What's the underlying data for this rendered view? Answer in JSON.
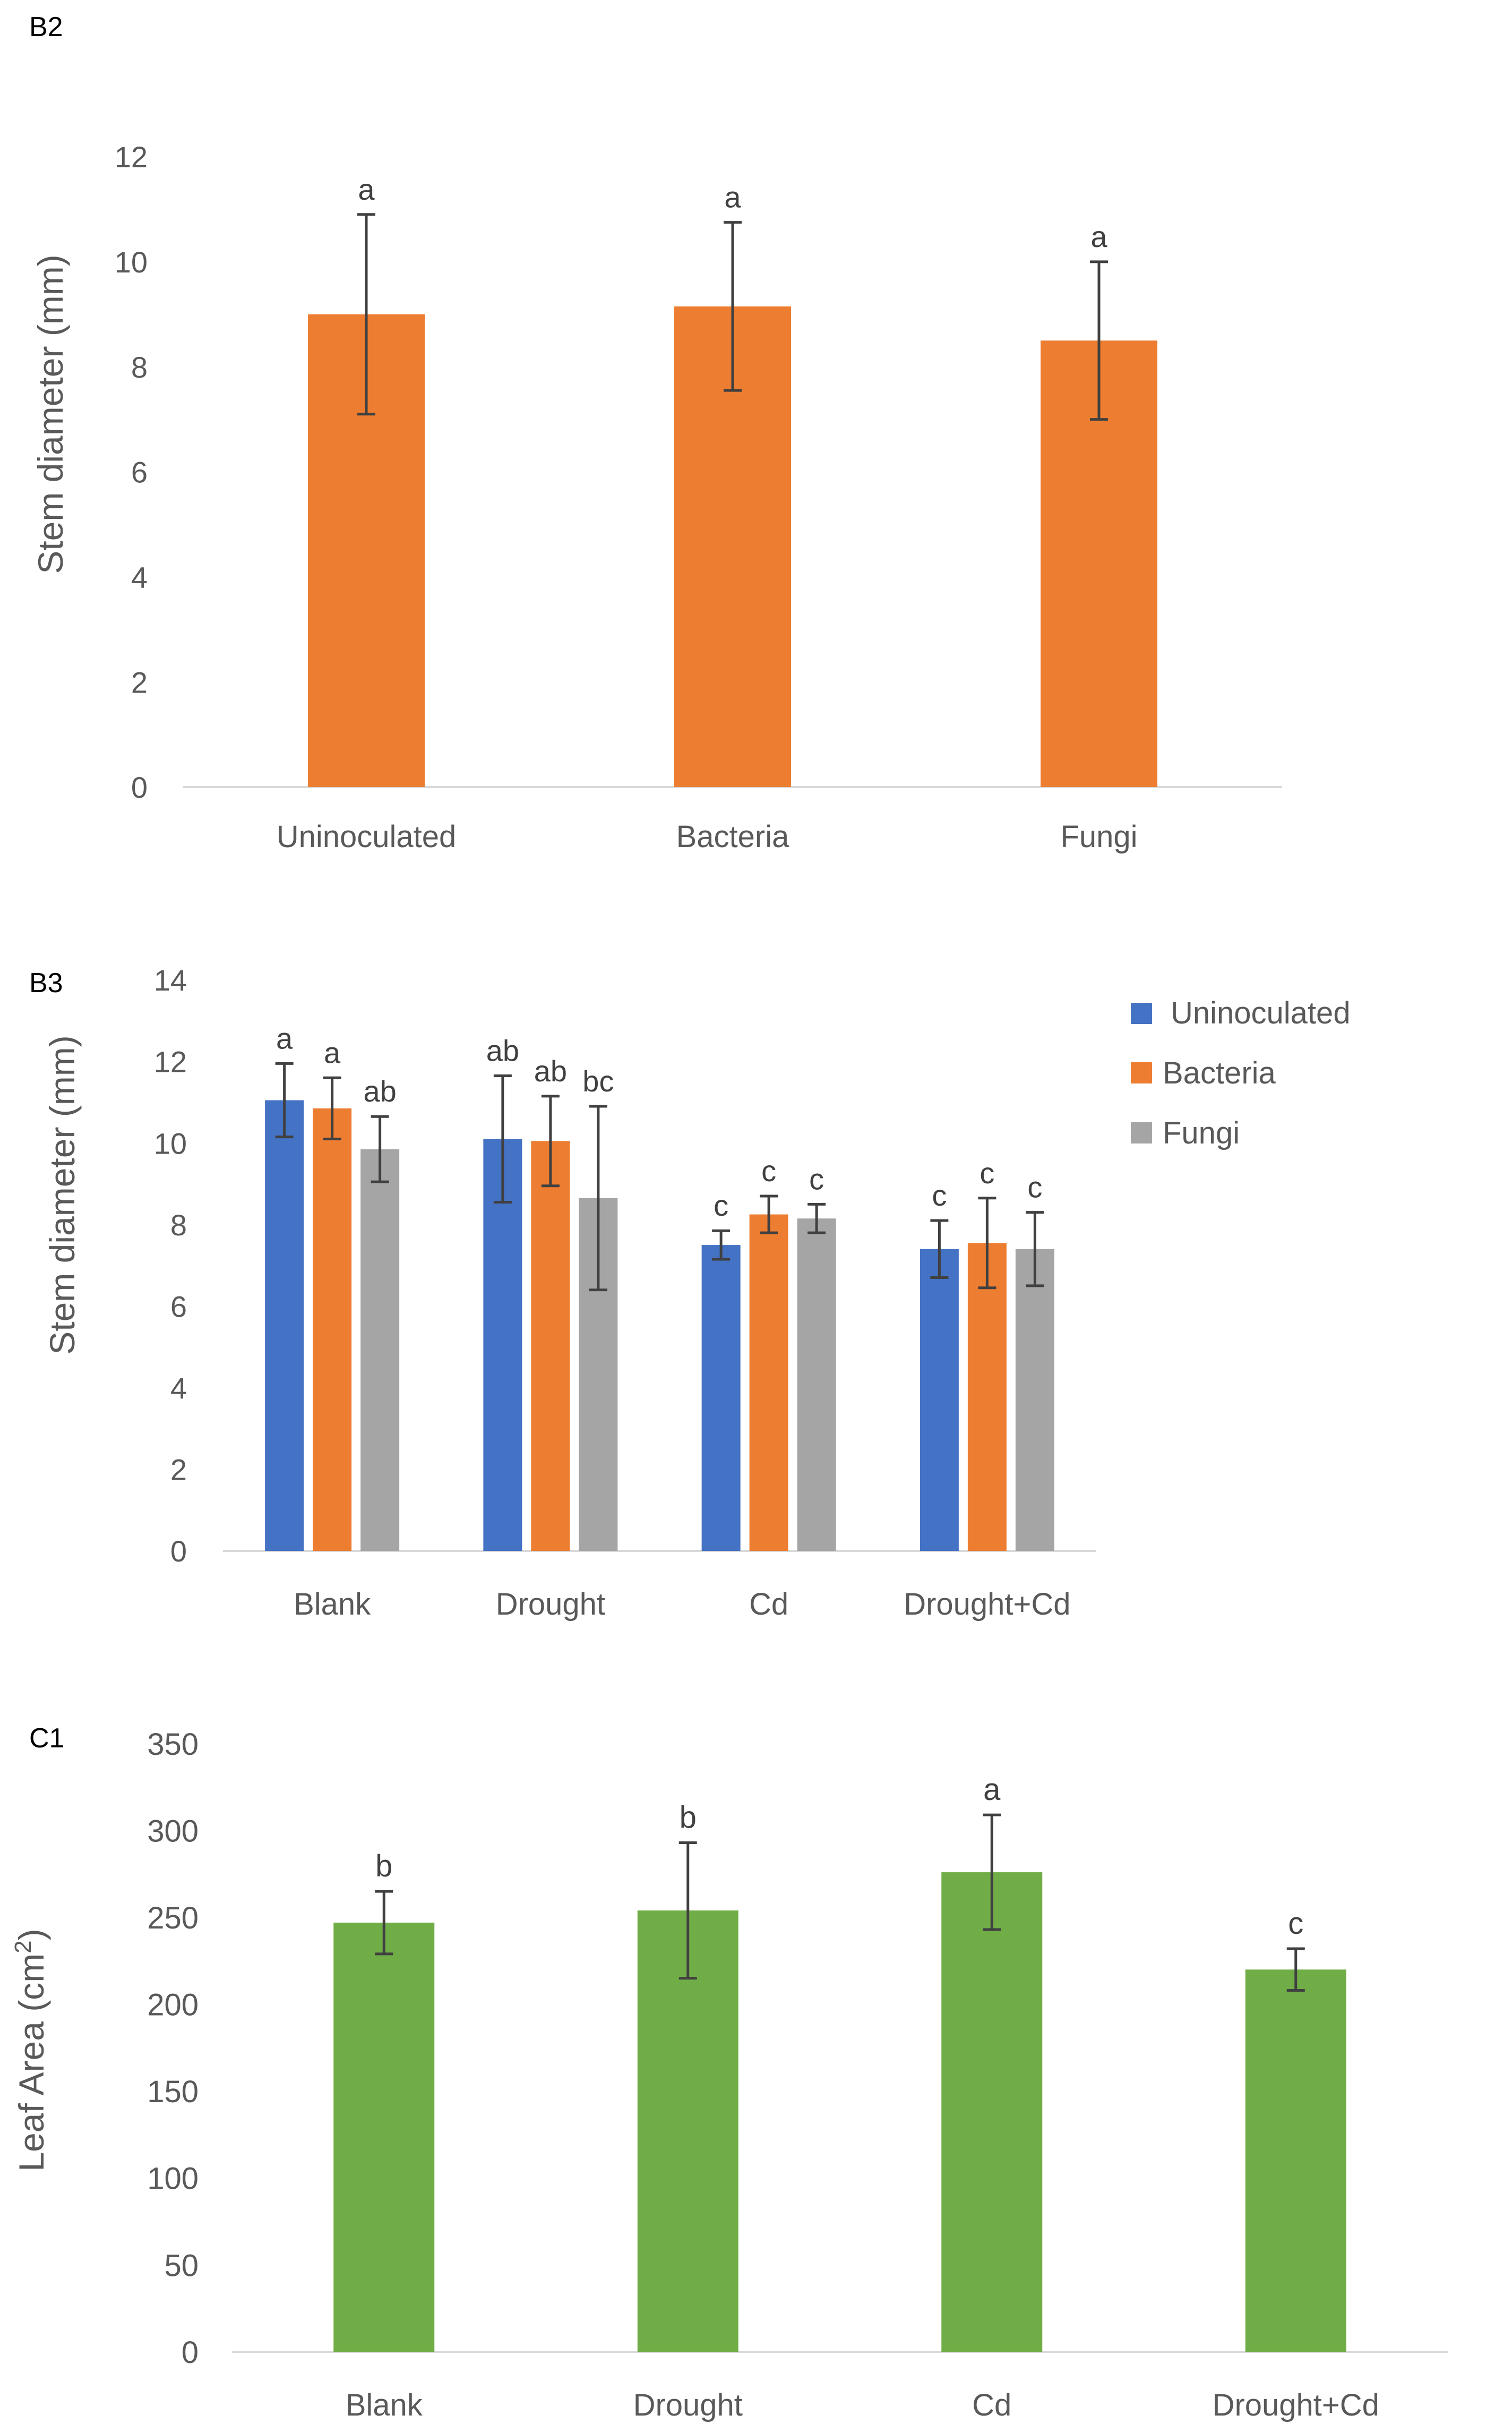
{
  "chart_data": [
    {
      "panel_label": "B2",
      "type": "bar",
      "title": "",
      "xlabel": "",
      "ylabel": "Stem diameter (mm)",
      "ylim": [
        0,
        12
      ],
      "yticks": [
        0,
        2,
        4,
        6,
        8,
        10,
        12
      ],
      "categories": [
        "Uninoculated",
        "Bacteria",
        "Fungi"
      ],
      "series": [
        {
          "name": "",
          "color": "#ED7D31",
          "values": [
            9.0,
            9.15,
            8.5
          ],
          "errors": [
            1.9,
            1.6,
            1.5
          ],
          "letters": [
            "a",
            "a",
            "a"
          ]
        }
      ],
      "legend": "none"
    },
    {
      "panel_label": "B3",
      "type": "bar",
      "title": "",
      "xlabel": "",
      "ylabel": "Stem diameter (mm)",
      "ylim": [
        0,
        14
      ],
      "yticks": [
        0,
        2,
        4,
        6,
        8,
        10,
        12,
        14
      ],
      "categories": [
        "Blank",
        "Drought",
        "Cd",
        "Drought+Cd"
      ],
      "series": [
        {
          "name": "Uninoculated",
          "color": "#4472C4",
          "values": [
            11.05,
            10.1,
            7.5,
            7.4
          ],
          "errors": [
            0.9,
            1.55,
            0.35,
            0.7
          ],
          "letters": [
            "a",
            "ab",
            "c",
            "c"
          ]
        },
        {
          "name": "Bacteria",
          "color": "#ED7D31",
          "values": [
            10.85,
            10.05,
            8.25,
            7.55
          ],
          "errors": [
            0.75,
            1.1,
            0.45,
            1.1
          ],
          "letters": [
            "a",
            "ab",
            "c",
            "c"
          ]
        },
        {
          "name": "Fungi",
          "color": "#A5A5A5",
          "values": [
            9.85,
            8.65,
            8.15,
            7.4
          ],
          "errors": [
            0.8,
            2.25,
            0.35,
            0.9
          ],
          "letters": [
            "ab",
            "bc",
            "c",
            "c"
          ]
        }
      ],
      "legend": "right"
    },
    {
      "panel_label": "C1",
      "type": "bar",
      "title": "",
      "xlabel": "",
      "ylabel_main": "Leaf Area (cm",
      "ylabel_sup": "2",
      "ylabel_end": ")",
      "ylim": [
        0,
        350
      ],
      "yticks": [
        0,
        50,
        100,
        150,
        200,
        250,
        300,
        350
      ],
      "categories": [
        "Blank",
        "Drought",
        "Cd",
        "Drought+Cd"
      ],
      "series": [
        {
          "name": "",
          "color": "#70AD47",
          "values": [
            247,
            254,
            276,
            220
          ],
          "errors": [
            18,
            39,
            33,
            12
          ],
          "letters": [
            "b",
            "b",
            "a",
            "c"
          ]
        }
      ],
      "legend": "none"
    }
  ]
}
